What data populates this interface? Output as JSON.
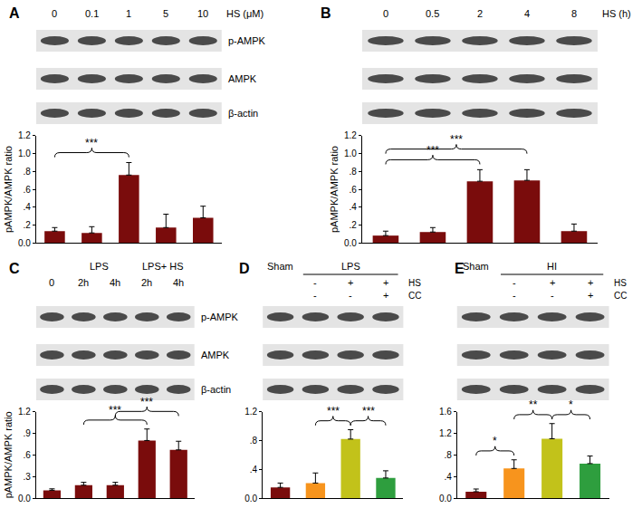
{
  "chart_data": [
    {
      "panel": "A",
      "type": "bar",
      "categories": [
        "0",
        "0.1",
        "1",
        "5",
        "10"
      ],
      "lane_unit": "HS (μM)",
      "blot_rows": [
        "p-AMPK",
        "AMPK",
        "β-actin"
      ],
      "values": [
        0.13,
        0.11,
        0.76,
        0.17,
        0.28
      ],
      "errors": [
        0.04,
        0.07,
        0.14,
        0.15,
        0.13
      ],
      "color": "#7a0c0c",
      "y_label": "pAMPK/AMPK ratio",
      "ylim": [
        0,
        1.2
      ],
      "yticks": [
        {
          "value": 0,
          "label": "0.0"
        },
        {
          "value": 0.2,
          "label": ".2"
        },
        {
          "value": 0.4,
          "label": ".4"
        },
        {
          "value": 0.6,
          "label": ".6"
        },
        {
          "value": 0.8,
          "label": ".8"
        },
        {
          "value": 1.0,
          "label": "1.0"
        },
        {
          "value": 1.2,
          "label": "1.2"
        }
      ],
      "significance": [
        {
          "from": 0,
          "to": 2,
          "label": "***"
        }
      ],
      "grid": false,
      "tick_labels": "y"
    },
    {
      "panel": "B",
      "type": "bar",
      "categories": [
        "0",
        "0.5",
        "2",
        "4",
        "8"
      ],
      "lane_unit": "HS (h)",
      "blot_rows": [
        null,
        null,
        null
      ],
      "values": [
        0.08,
        0.12,
        0.69,
        0.7,
        0.13
      ],
      "errors": [
        0.05,
        0.05,
        0.13,
        0.12,
        0.08
      ],
      "color": "#7a0c0c",
      "y_label": "pAMPK/AMPK ratio",
      "ylim": [
        0,
        1.2
      ],
      "yticks": [
        {
          "value": 0,
          "label": "0.0"
        },
        {
          "value": 0.2,
          "label": ".2"
        },
        {
          "value": 0.4,
          "label": ".4"
        },
        {
          "value": 0.6,
          "label": ".6"
        },
        {
          "value": 0.8,
          "label": ".8"
        },
        {
          "value": 1.0,
          "label": "1.0"
        },
        {
          "value": 1.2,
          "label": "1.2"
        }
      ],
      "significance": [
        {
          "from": 0,
          "to": 2,
          "label": "***"
        },
        {
          "from": 0,
          "to": 3,
          "label": "***"
        }
      ],
      "grid": false,
      "tick_labels": "y"
    },
    {
      "panel": "C",
      "type": "bar",
      "categories": [
        "0",
        "2h",
        "4h",
        "2h",
        "4h"
      ],
      "lane_groups": [
        {
          "label": "LPS",
          "from": 1,
          "to": 2
        },
        {
          "label": "LPS+ HS",
          "from": 3,
          "to": 4
        }
      ],
      "blot_rows": [
        "p-AMPK",
        "AMPK",
        "β-actin"
      ],
      "values": [
        0.11,
        0.18,
        0.18,
        0.8,
        0.67
      ],
      "errors": [
        0.02,
        0.04,
        0.04,
        0.16,
        0.12
      ],
      "color": "#7a0c0c",
      "y_label": "pAMPK/AMPK ratio",
      "ylim": [
        0,
        1.2
      ],
      "yticks": [
        {
          "value": 0,
          "label": "0.0"
        },
        {
          "value": 0.3,
          "label": ".3"
        },
        {
          "value": 0.6,
          "label": ".6"
        },
        {
          "value": 0.9,
          "label": ".9"
        },
        {
          "value": 1.2,
          "label": "1.2"
        }
      ],
      "significance": [
        {
          "from": 1,
          "to": 3,
          "label": "***"
        },
        {
          "from": 2,
          "to": 4,
          "label": "***"
        }
      ],
      "grid": false,
      "tick_labels": "y"
    },
    {
      "panel": "D",
      "type": "bar",
      "categories": [
        "Sham",
        null,
        null,
        null
      ],
      "lane_groups": [
        {
          "label": "LPS",
          "from": 1,
          "to": 3
        }
      ],
      "conditions": [
        {
          "label": "HS",
          "marks": [
            null,
            "-",
            "+",
            "+"
          ]
        },
        {
          "label": "CC",
          "marks": [
            null,
            "-",
            "-",
            "+"
          ]
        }
      ],
      "blot_rows": [
        null,
        null,
        null
      ],
      "values": [
        0.15,
        0.21,
        0.82,
        0.28
      ],
      "errors": [
        0.06,
        0.14,
        0.13,
        0.1
      ],
      "colors": [
        "#7a0c0c",
        "#f7941d",
        "#c2c21a",
        "#2e9e3e"
      ],
      "ylim": [
        0,
        1.2
      ],
      "yticks": [
        {
          "value": 0,
          "label": "0.0"
        },
        {
          "value": 0.4,
          "label": ".4"
        },
        {
          "value": 0.8,
          "label": ".8"
        },
        {
          "value": 1.2,
          "label": "1.2"
        }
      ],
      "significance": [
        {
          "from": 1,
          "to": 2,
          "label": "***"
        },
        {
          "from": 2,
          "to": 3,
          "label": "***"
        }
      ],
      "grid": false,
      "tick_labels": "y"
    },
    {
      "panel": "E",
      "type": "bar",
      "categories": [
        "Sham",
        null,
        null,
        null
      ],
      "lane_groups": [
        {
          "label": "HI",
          "from": 1,
          "to": 3
        }
      ],
      "conditions": [
        {
          "label": "HS",
          "marks": [
            null,
            "-",
            "+",
            "+"
          ]
        },
        {
          "label": "CC",
          "marks": [
            null,
            "-",
            "-",
            "+"
          ]
        }
      ],
      "blot_rows": [
        null,
        null,
        null
      ],
      "values": [
        0.12,
        0.55,
        1.1,
        0.64
      ],
      "errors": [
        0.05,
        0.16,
        0.28,
        0.14
      ],
      "colors": [
        "#7a0c0c",
        "#f7941d",
        "#c2c21a",
        "#2e9e3e"
      ],
      "ylim": [
        0,
        1.6
      ],
      "yticks": [
        {
          "value": 0,
          "label": "0.0"
        },
        {
          "value": 0.4,
          "label": ".4"
        },
        {
          "value": 0.8,
          "label": ".8"
        },
        {
          "value": 1.2,
          "label": "1.2"
        },
        {
          "value": 1.6,
          "label": "1.6"
        }
      ],
      "significance": [
        {
          "from": 0,
          "to": 1,
          "label": "*"
        },
        {
          "from": 1,
          "to": 2,
          "label": "**"
        },
        {
          "from": 2,
          "to": 3,
          "label": "*"
        }
      ],
      "grid": false,
      "tick_labels": "y"
    }
  ]
}
